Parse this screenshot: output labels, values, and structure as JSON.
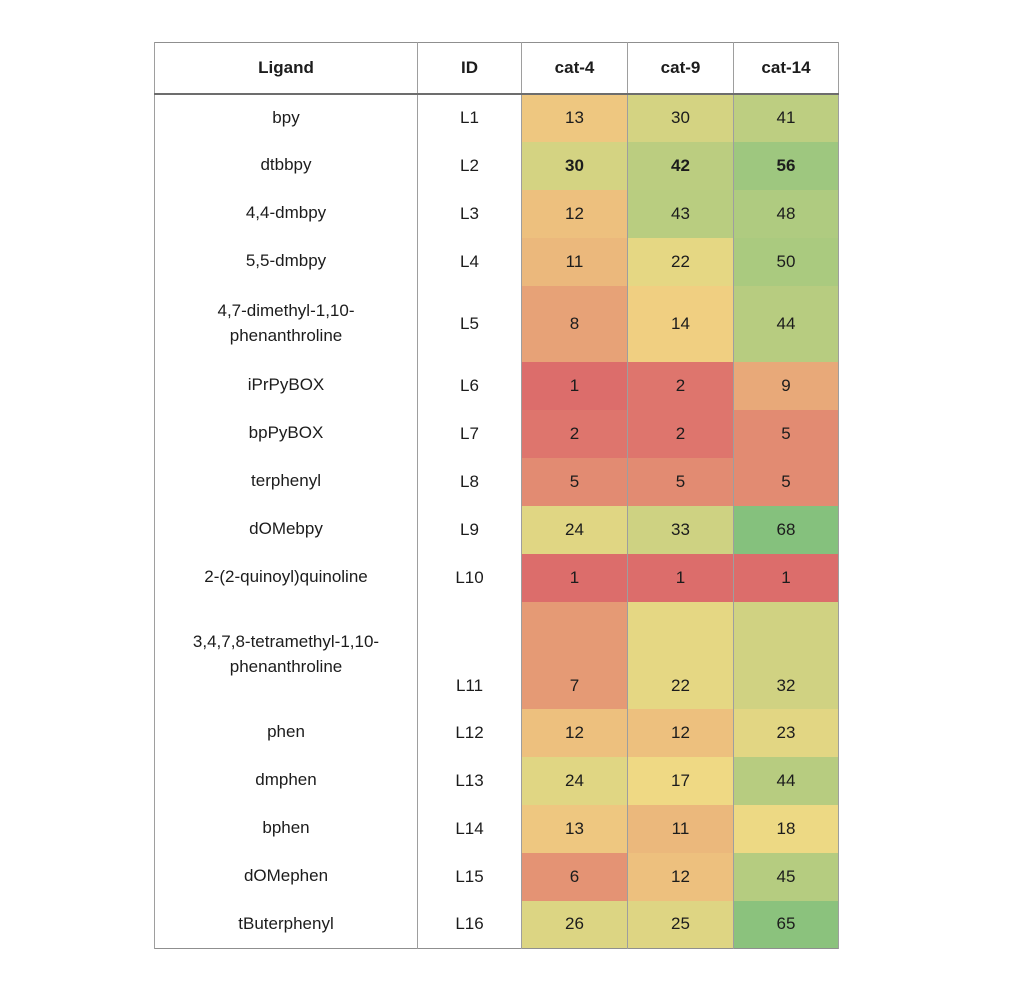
{
  "chart_data": {
    "type": "heatmap",
    "title": "",
    "columns": [
      "Ligand",
      "ID",
      "cat-4",
      "cat-9",
      "cat-14"
    ],
    "value_columns": [
      "cat-4",
      "cat-9",
      "cat-14"
    ],
    "layout": {
      "grid": "vertical-borders-only",
      "legend": "none",
      "colormap": "red-yellow-green",
      "value_min": 1,
      "value_max": 68
    },
    "color_scale": {
      "low": "#DC6D6B",
      "mid": "#F2DA84",
      "high": "#85C17D"
    },
    "rows": [
      {
        "ligand": "bpy",
        "id": "L1",
        "values": [
          13,
          30,
          41
        ],
        "colors": [
          "#EEC780",
          "#D4D382",
          "#BDCE81"
        ],
        "bold": false
      },
      {
        "ligand": "dtbbpy",
        "id": "L2",
        "values": [
          30,
          42,
          56
        ],
        "colors": [
          "#D4D382",
          "#BBCD80",
          "#9EC77F"
        ],
        "bold": true
      },
      {
        "ligand": "4,4-dmbpy",
        "id": "L3",
        "values": [
          12,
          43,
          48
        ],
        "colors": [
          "#EDC07E",
          "#B9CD80",
          "#AFCB80"
        ],
        "bold": false
      },
      {
        "ligand": "5,5-dmbpy",
        "id": "L4",
        "values": [
          11,
          22,
          50
        ],
        "colors": [
          "#EBB87C",
          "#E5D783",
          "#AACA7F"
        ],
        "bold": false
      },
      {
        "ligand": "4,7-dimethyl-1,10-\nphenanthroline",
        "id": "L5",
        "values": [
          8,
          14,
          44
        ],
        "colors": [
          "#E7A277",
          "#F0CF81",
          "#B7CC80"
        ],
        "bold": false
      },
      {
        "ligand": "iPrPyBOX",
        "id": "L6",
        "values": [
          1,
          2,
          9
        ],
        "colors": [
          "#DC6D6B",
          "#DE756D",
          "#E8A979"
        ],
        "bold": false
      },
      {
        "ligand": "bpPyBOX",
        "id": "L7",
        "values": [
          2,
          2,
          5
        ],
        "colors": [
          "#DE756D",
          "#DE756D",
          "#E28B72"
        ],
        "bold": false
      },
      {
        "ligand": "terphenyl",
        "id": "L8",
        "values": [
          5,
          5,
          5
        ],
        "colors": [
          "#E28B72",
          "#E28B72",
          "#E28B72"
        ],
        "bold": false
      },
      {
        "ligand": "dOMebpy",
        "id": "L9",
        "values": [
          24,
          33,
          68
        ],
        "colors": [
          "#E0D683",
          "#CED282",
          "#85C17D"
        ],
        "bold": false
      },
      {
        "ligand": "2-(2-quinoyl)quinoline",
        "id": "L10",
        "values": [
          1,
          1,
          1
        ],
        "colors": [
          "#DC6D6B",
          "#DC6D6B",
          "#DC6D6B"
        ],
        "bold": false
      },
      {
        "ligand": "3,4,7,8-tetramethyl-1,10-\nphenanthroline",
        "id": "L11",
        "values": [
          7,
          22,
          32
        ],
        "colors": [
          "#E59A75",
          "#E5D783",
          "#D0D282"
        ],
        "bold": false
      },
      {
        "ligand": "phen",
        "id": "L12",
        "values": [
          12,
          12,
          23
        ],
        "colors": [
          "#EDC07E",
          "#EDC07E",
          "#E2D683"
        ],
        "bold": false
      },
      {
        "ligand": "dmphen",
        "id": "L13",
        "values": [
          24,
          17,
          44
        ],
        "colors": [
          "#E0D683",
          "#EFD984",
          "#B7CC80"
        ],
        "bold": false
      },
      {
        "ligand": "bphen",
        "id": "L14",
        "values": [
          13,
          11,
          18
        ],
        "colors": [
          "#EEC780",
          "#EBB87C",
          "#EDD984"
        ],
        "bold": false
      },
      {
        "ligand": "dOMephen",
        "id": "L15",
        "values": [
          6,
          12,
          45
        ],
        "colors": [
          "#E49374",
          "#EDC07E",
          "#B5CC80"
        ],
        "bold": false
      },
      {
        "ligand": "tButerphenyl",
        "id": "L16",
        "values": [
          26,
          25,
          65
        ],
        "colors": [
          "#DCD583",
          "#DED583",
          "#8BC27D"
        ],
        "bold": false
      }
    ]
  }
}
